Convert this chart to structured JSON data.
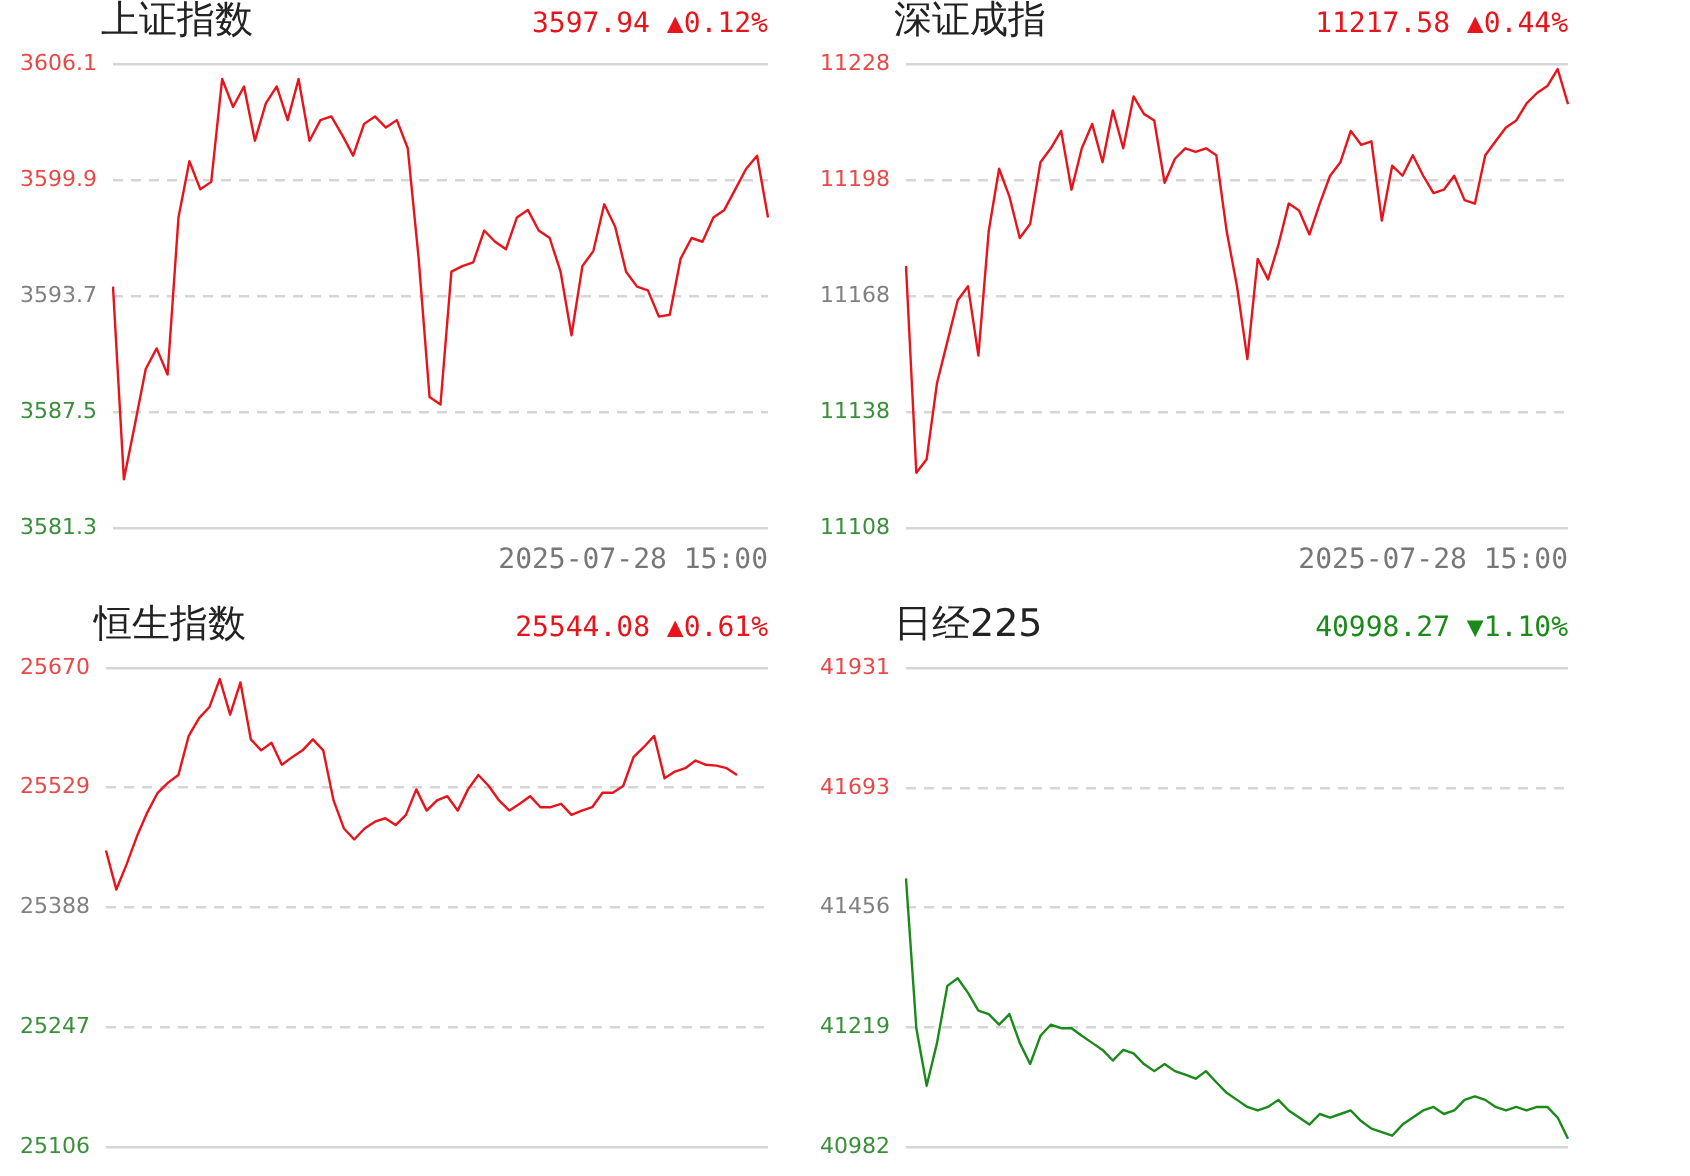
{
  "chart_data": [
    {
      "type": "line",
      "title": "上证指数",
      "annotations": [
        "3597.94 ▲0.12%",
        "2025-07-28 15:00"
      ],
      "marker": "none",
      "grid": "y",
      "tick_labels": "y",
      "categories": [
        null,
        null,
        null,
        null,
        null,
        null,
        null,
        null,
        null,
        null,
        null,
        null,
        null,
        null,
        null,
        null,
        null,
        null,
        null,
        null,
        null,
        null,
        null,
        null,
        null,
        null,
        null,
        null,
        null,
        null,
        null,
        null,
        null,
        null,
        null,
        null,
        null,
        null,
        null,
        null,
        null,
        null,
        null,
        null,
        null,
        null,
        null,
        null,
        null,
        null,
        null,
        null,
        null,
        null,
        null,
        null,
        null,
        null,
        null,
        null,
        null
      ],
      "ylim": [
        3581.3,
        3606.1
      ],
      "yticks": [
        3581.3,
        3587.5,
        3593.7,
        3599.9,
        3606.1
      ],
      "series": [
        {
          "color": "#e8141c",
          "values": [
            3594.2,
            3583.9,
            3586.8,
            3589.8,
            3590.9,
            3589.5,
            3597.9,
            3600.9,
            3599.4,
            3599.8,
            3605.3,
            3603.8,
            3604.9,
            3602.0,
            3604.0,
            3604.9,
            3603.1,
            3605.3,
            3602.0,
            3603.1,
            3603.3,
            3602.3,
            3601.2,
            3602.9,
            3603.3,
            3602.7,
            3603.1,
            3601.6,
            3595.7,
            3588.3,
            3587.9,
            3595.0,
            3595.3,
            3595.5,
            3597.2,
            3596.6,
            3596.2,
            3597.9,
            3598.3,
            3597.2,
            3596.8,
            3595.0,
            3591.6,
            3595.3,
            3596.1,
            3598.6,
            3597.4,
            3595.0,
            3594.2,
            3594.0,
            3592.6,
            3592.7,
            3595.7,
            3596.8,
            3596.6,
            3597.9,
            3598.3,
            3599.4,
            3600.5,
            3601.2,
            3597.9
          ]
        }
      ]
    },
    {
      "type": "line",
      "title": "深证成指",
      "annotations": [
        "11217.58 ▲0.44%",
        "2025-07-28 15:00"
      ],
      "marker": "none",
      "grid": "y",
      "tick_labels": "y",
      "categories": [
        null,
        null,
        null,
        null,
        null,
        null,
        null,
        null,
        null,
        null,
        null,
        null,
        null,
        null,
        null,
        null,
        null,
        null,
        null,
        null,
        null,
        null,
        null,
        null,
        null,
        null,
        null,
        null,
        null,
        null,
        null,
        null,
        null,
        null,
        null,
        null,
        null,
        null,
        null,
        null,
        null,
        null,
        null,
        null,
        null,
        null,
        null,
        null,
        null,
        null,
        null,
        null,
        null,
        null,
        null,
        null,
        null,
        null,
        null,
        null,
        null,
        null,
        null,
        null,
        null
      ],
      "ylim": [
        11108,
        11228
      ],
      "yticks": [
        11108,
        11138,
        11168,
        11198,
        11228
      ],
      "series": [
        {
          "color": "#e8141c",
          "values": [
            11175.8,
            11122.3,
            11125.8,
            11145.5,
            11156.2,
            11166.9,
            11170.5,
            11152.6,
            11184.8,
            11200.9,
            11193.7,
            11183.0,
            11186.6,
            11202.6,
            11206.2,
            11210.7,
            11195.5,
            11206.2,
            11212.5,
            11202.6,
            11216.0,
            11206.2,
            11219.6,
            11215.1,
            11213.4,
            11197.3,
            11203.5,
            11206.2,
            11205.3,
            11206.2,
            11204.4,
            11184.8,
            11170.5,
            11151.7,
            11177.6,
            11172.3,
            11181.2,
            11191.9,
            11190.1,
            11183.9,
            11191.9,
            11199.1,
            11202.6,
            11210.7,
            11207.1,
            11208.0,
            11187.5,
            11201.7,
            11199.1,
            11204.4,
            11199.1,
            11194.6,
            11195.5,
            11199.1,
            11192.8,
            11191.9,
            11204.4,
            11208.0,
            11211.6,
            11213.4,
            11217.8,
            11220.5,
            11222.3,
            11226.7,
            11217.6
          ]
        }
      ]
    },
    {
      "type": "line",
      "title": "恒生指数",
      "annotations": [
        "25544.08 ▲0.61%"
      ],
      "marker": "none",
      "grid": "y",
      "tick_labels": "y",
      "categories": [
        null,
        null,
        null,
        null,
        null,
        null,
        null,
        null,
        null,
        null,
        null,
        null,
        null,
        null,
        null,
        null,
        null,
        null,
        null,
        null,
        null,
        null,
        null,
        null,
        null,
        null,
        null,
        null,
        null,
        null,
        null,
        null,
        null,
        null,
        null,
        null,
        null,
        null,
        null,
        null,
        null,
        null,
        null,
        null,
        null,
        null,
        null,
        null,
        null,
        null,
        null,
        null,
        null,
        null,
        null,
        null,
        null,
        null,
        null,
        null,
        null,
        null,
        null,
        null,
        null
      ],
      "ylim": [
        25106,
        25670
      ],
      "yticks": [
        25106,
        25247,
        25388,
        25529,
        25670
      ],
      "series": [
        {
          "color": "#e8141c",
          "values": [
            25455,
            25409,
            25439,
            25472,
            25500,
            25523,
            25535,
            25544,
            25590,
            25611,
            25624,
            25657,
            25615,
            25653,
            25586,
            25573,
            25582,
            25556,
            25565,
            25573,
            25586,
            25573,
            25514,
            25481,
            25468,
            25481,
            25489,
            25493,
            25485,
            25497,
            25527,
            25502,
            25514,
            25519,
            25502,
            25527,
            25544,
            25531,
            25514,
            25502,
            25510,
            25519,
            25506,
            25506,
            25510,
            25497,
            25502,
            25506,
            25523,
            25523,
            25531,
            25565,
            25577,
            25590,
            25540,
            25548,
            25552,
            25561,
            25556,
            25555,
            25552,
            25544,
            null,
            null,
            null
          ]
        }
      ]
    },
    {
      "type": "line",
      "title": "日经225",
      "annotations": [
        "40998.27 ▼1.10%"
      ],
      "marker": "none",
      "grid": "y",
      "tick_labels": "y",
      "categories": [
        null,
        null,
        null,
        null,
        null,
        null,
        null,
        null,
        null,
        null,
        null,
        null,
        null,
        null,
        null,
        null,
        null,
        null,
        null,
        null,
        null,
        null,
        null,
        null,
        null,
        null,
        null,
        null,
        null,
        null,
        null,
        null,
        null,
        null,
        null,
        null,
        null,
        null,
        null,
        null,
        null,
        null,
        null,
        null,
        null,
        null,
        null,
        null,
        null,
        null,
        null,
        null,
        null,
        null,
        null,
        null,
        null,
        null,
        null,
        null,
        null,
        null,
        null,
        null,
        null
      ],
      "ylim": [
        40982,
        41931
      ],
      "yticks": [
        40982,
        41219,
        41456,
        41693,
        41931
      ],
      "series": [
        {
          "color": "#1a8a1a",
          "values": [
            41514,
            41217,
            41103,
            41188,
            41301,
            41316,
            41287,
            41252,
            41245,
            41224,
            41245,
            41188,
            41146,
            41202,
            41224,
            41217,
            41217,
            41202,
            41188,
            41174,
            41153,
            41174,
            41167,
            41146,
            41132,
            41146,
            41132,
            41125,
            41117,
            41132,
            41110,
            41089,
            41075,
            41061,
            41054,
            41061,
            41075,
            41054,
            41040,
            41026,
            41047,
            41040,
            41047,
            41054,
            41033,
            41018,
            41011,
            41004,
            41026,
            41040,
            41054,
            41061,
            41047,
            41054,
            41075,
            41082,
            41075,
            41061,
            41054,
            41061,
            41054,
            41061,
            41061,
            41040,
            40998
          ]
        }
      ]
    }
  ]
}
